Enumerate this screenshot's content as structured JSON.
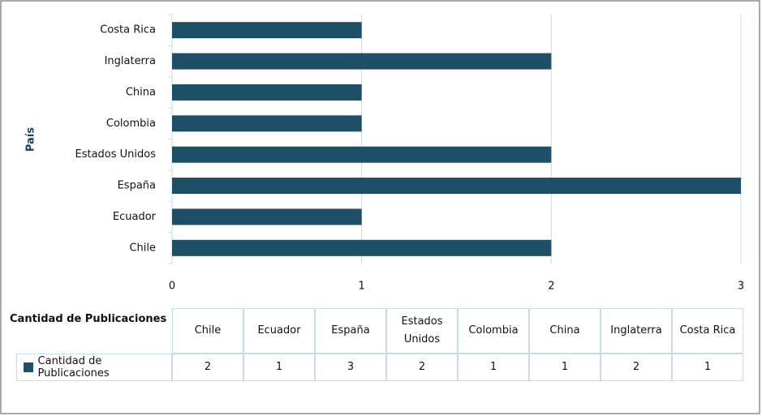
{
  "chart_data": {
    "type": "bar",
    "orientation": "horizontal",
    "ylabel": "País",
    "xlabel": "Cantidad de Publicaciones",
    "categories": [
      "Chile",
      "Ecuador",
      "España",
      "Estados Unidos",
      "Colombia",
      "China",
      "Inglaterra",
      "Costa Rica"
    ],
    "series": [
      {
        "name": "Cantidad de Publicaciones",
        "color": "#1d4f66",
        "values": [
          2,
          1,
          3,
          2,
          1,
          1,
          2,
          1
        ]
      }
    ],
    "xlim": [
      0,
      3
    ],
    "xticks": [
      0,
      1,
      2,
      3
    ],
    "grid": true
  }
}
